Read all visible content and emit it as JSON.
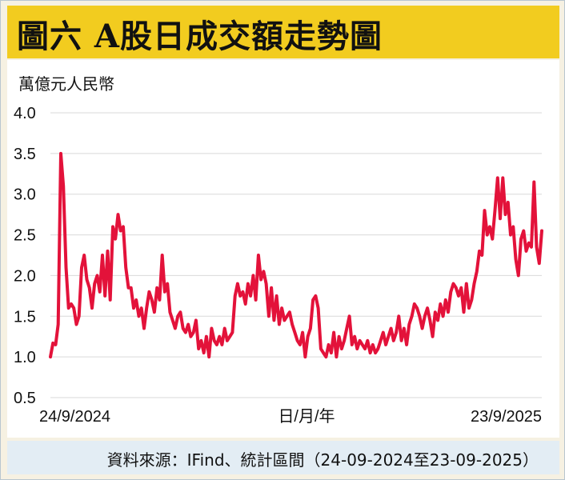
{
  "header": {
    "title": "圖六  A股日成交額走勢圖"
  },
  "footer": {
    "source": "資料來源：IFind、統計區間（24-09-2024至23-09-2025）"
  },
  "colors": {
    "line": "#e3123a",
    "title_band": "#f2cc1f",
    "grid": "#d9d9d9"
  },
  "chart_data": {
    "type": "line",
    "ylabel": "萬億元人民幣",
    "xlabel": "日/月/年",
    "x_tick_labels": [
      "24/9/2024",
      "23/9/2025"
    ],
    "ylim": [
      0.5,
      4.0
    ],
    "yticks": [
      "0.5",
      "1.0",
      "1.5",
      "2.0",
      "2.5",
      "3.0",
      "3.5",
      "4.0"
    ],
    "grid": true,
    "series": [
      {
        "values": [
          1.0,
          1.17,
          1.15,
          1.4,
          3.5,
          3.1,
          2.1,
          1.6,
          1.65,
          1.6,
          1.4,
          1.5,
          2.1,
          2.25,
          1.95,
          1.85,
          1.6,
          1.9,
          2.0,
          1.8,
          2.25,
          1.75,
          2.3,
          1.7,
          2.6,
          2.45,
          2.75,
          2.55,
          2.6,
          2.1,
          1.85,
          1.85,
          1.6,
          1.7,
          1.5,
          1.6,
          1.35,
          1.6,
          1.8,
          1.7,
          1.55,
          1.85,
          1.7,
          2.25,
          1.8,
          1.9,
          1.55,
          1.45,
          1.35,
          1.5,
          1.55,
          1.35,
          1.3,
          1.4,
          1.25,
          1.3,
          1.45,
          1.1,
          1.2,
          1.05,
          1.25,
          1.0,
          1.35,
          1.2,
          1.15,
          1.25,
          1.15,
          1.35,
          1.2,
          1.25,
          1.3,
          1.75,
          1.9,
          1.75,
          1.8,
          1.65,
          1.9,
          1.75,
          2.0,
          1.7,
          2.25,
          1.95,
          2.05,
          1.9,
          1.5,
          1.85,
          1.45,
          1.75,
          1.4,
          1.6,
          1.45,
          1.5,
          1.55,
          1.4,
          1.3,
          1.2,
          1.15,
          1.3,
          1.0,
          1.25,
          1.35,
          1.7,
          1.75,
          1.6,
          1.1,
          1.05,
          1.0,
          1.15,
          1.05,
          1.3,
          1.0,
          1.25,
          1.1,
          1.2,
          1.35,
          1.5,
          1.15,
          1.25,
          1.1,
          1.2,
          1.15,
          1.1,
          1.2,
          1.05,
          1.15,
          1.05,
          1.1,
          1.2,
          1.3,
          1.15,
          1.25,
          1.35,
          1.2,
          1.3,
          1.5,
          1.2,
          1.35,
          1.15,
          1.4,
          1.5,
          1.65,
          1.6,
          1.5,
          1.35,
          1.5,
          1.6,
          1.45,
          1.25,
          1.55,
          1.45,
          1.65,
          1.5,
          1.7,
          1.55,
          1.8,
          1.9,
          1.85,
          1.75,
          1.85,
          1.55,
          1.9,
          1.6,
          1.7,
          1.9,
          2.05,
          2.3,
          2.25,
          2.8,
          2.5,
          2.6,
          2.45,
          2.8,
          3.2,
          2.7,
          3.2,
          2.75,
          2.9,
          2.5,
          2.6,
          2.2,
          2.0,
          2.45,
          2.55,
          2.3,
          2.4,
          2.35,
          3.15,
          2.35,
          2.15,
          2.55
        ]
      }
    ]
  }
}
